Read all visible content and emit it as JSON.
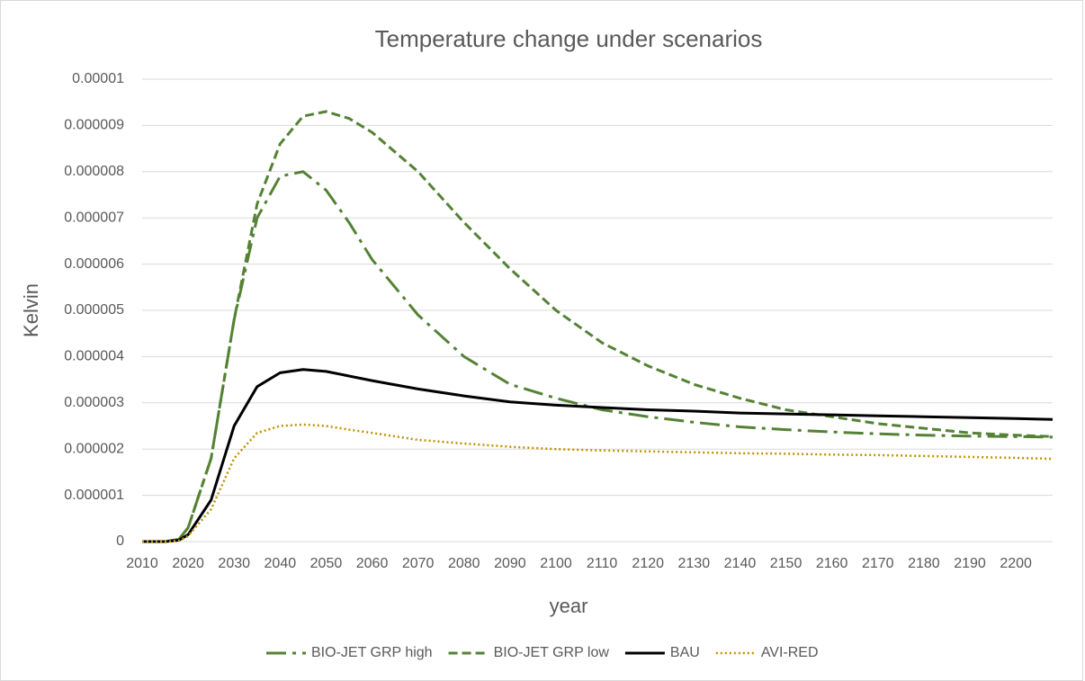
{
  "chart_data": {
    "type": "line",
    "title": "Temperature change under scenarios",
    "x_label": "year",
    "y_label": "Kelvin",
    "x": [
      2010,
      2015,
      2018,
      2020,
      2025,
      2030,
      2035,
      2040,
      2045,
      2050,
      2055,
      2060,
      2070,
      2080,
      2090,
      2100,
      2110,
      2120,
      2130,
      2140,
      2150,
      2160,
      2170,
      2180,
      2190,
      2200,
      2208
    ],
    "series": [
      {
        "name": "BIO-JET GRP high",
        "color": "#548235",
        "line_style": "dash-dot",
        "values": [
          0,
          0,
          5e-08,
          3e-07,
          1.8e-06,
          4.8e-06,
          7e-06,
          7.9e-06,
          8e-06,
          7.6e-06,
          6.9e-06,
          6.1e-06,
          4.9e-06,
          4e-06,
          3.4e-06,
          3.1e-06,
          2.85e-06,
          2.7e-06,
          2.58e-06,
          2.48e-06,
          2.42e-06,
          2.37e-06,
          2.33e-06,
          2.3e-06,
          2.28e-06,
          2.27e-06,
          2.26e-06
        ]
      },
      {
        "name": "BIO-JET GRP low",
        "color": "#548235",
        "line_style": "dashed",
        "values": [
          0,
          0,
          5e-08,
          3e-07,
          1.8e-06,
          4.8e-06,
          7.3e-06,
          8.6e-06,
          9.2e-06,
          9.3e-06,
          9.15e-06,
          8.85e-06,
          8e-06,
          6.9e-06,
          5.9e-06,
          5e-06,
          4.3e-06,
          3.8e-06,
          3.4e-06,
          3.1e-06,
          2.85e-06,
          2.7e-06,
          2.55e-06,
          2.45e-06,
          2.35e-06,
          2.3e-06,
          2.27e-06
        ]
      },
      {
        "name": "BAU",
        "color": "#000000",
        "line_style": "solid",
        "values": [
          0,
          0,
          3e-08,
          1.5e-07,
          9e-07,
          2.5e-06,
          3.35e-06,
          3.65e-06,
          3.72e-06,
          3.68e-06,
          3.58e-06,
          3.48e-06,
          3.3e-06,
          3.15e-06,
          3.02e-06,
          2.95e-06,
          2.9e-06,
          2.85e-06,
          2.82e-06,
          2.78e-06,
          2.76e-06,
          2.74e-06,
          2.72e-06,
          2.7e-06,
          2.68e-06,
          2.66e-06,
          2.64e-06
        ]
      },
      {
        "name": "AVI-RED",
        "color": "#bf9000",
        "line_style": "dotted",
        "values": [
          0,
          0,
          2e-08,
          1.2e-07,
          7e-07,
          1.8e-06,
          2.35e-06,
          2.5e-06,
          2.53e-06,
          2.5e-06,
          2.42e-06,
          2.35e-06,
          2.2e-06,
          2.12e-06,
          2.05e-06,
          2e-06,
          1.97e-06,
          1.95e-06,
          1.93e-06,
          1.91e-06,
          1.9e-06,
          1.88e-06,
          1.87e-06,
          1.85e-06,
          1.83e-06,
          1.81e-06,
          1.79e-06
        ]
      }
    ],
    "xlim": [
      2010,
      2208
    ],
    "xticks": [
      2010,
      2020,
      2030,
      2040,
      2050,
      2060,
      2070,
      2080,
      2090,
      2100,
      2110,
      2120,
      2130,
      2140,
      2150,
      2160,
      2170,
      2180,
      2190,
      2200
    ],
    "ylim": [
      0,
      1e-05
    ],
    "yticks": [
      0,
      1e-06,
      2e-06,
      3e-06,
      4e-06,
      5e-06,
      6e-06,
      7e-06,
      8e-06,
      9e-06,
      1e-05
    ],
    "grid": true,
    "legend": "bottom"
  }
}
